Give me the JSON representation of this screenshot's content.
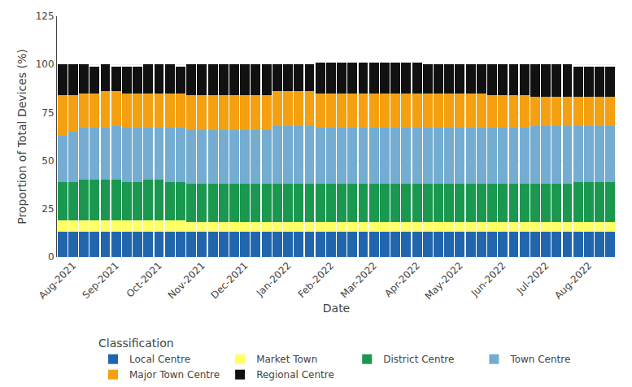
{
  "chart_data": {
    "type": "bar",
    "stacked": true,
    "xlabel": "Date",
    "ylabel": "Proportion of Total Devices (%)",
    "legend_title": "Classification",
    "legend": "bottom",
    "grid": true,
    "categories": [
      null,
      "Aug-2021",
      null,
      null,
      null,
      "Sep-2021",
      null,
      null,
      null,
      "Oct-2021",
      null,
      null,
      null,
      "Nov-2021",
      null,
      null,
      null,
      "Dec-2021",
      null,
      null,
      null,
      "Jan-2022",
      null,
      null,
      null,
      "Feb-2022",
      null,
      null,
      null,
      "Mar-2022",
      null,
      null,
      null,
      "Apr-2022",
      null,
      null,
      null,
      "May-2022",
      null,
      null,
      null,
      "Jun-2022",
      null,
      null,
      null,
      "Jul-2022",
      null,
      null,
      null,
      "Aug-2022",
      null,
      null
    ],
    "ylim": [
      0,
      125
    ],
    "yticks": [
      0,
      25,
      50,
      75,
      100,
      125
    ],
    "series": [
      {
        "name": "Local Centre",
        "color": "#2166ac",
        "values": [
          13,
          13,
          13,
          13,
          13,
          13,
          13,
          13,
          13,
          13,
          13,
          13,
          13,
          13,
          13,
          13,
          13,
          13,
          13,
          13,
          13,
          13,
          13,
          13,
          13,
          13,
          13,
          13,
          13,
          13,
          13,
          13,
          13,
          13,
          13,
          13,
          13,
          13,
          13,
          13,
          13,
          13,
          13,
          13,
          13,
          13,
          13,
          13,
          13,
          13,
          13,
          13
        ]
      },
      {
        "name": "Market Town",
        "color": "#FFFF66",
        "values": [
          6,
          6,
          6,
          6,
          6,
          6,
          6,
          6,
          6,
          6,
          6,
          6,
          5,
          5,
          5,
          5,
          5,
          5,
          5,
          5,
          5,
          5,
          5,
          5,
          5,
          5,
          5,
          5,
          5,
          5,
          5,
          5,
          5,
          5,
          5,
          5,
          5,
          5,
          5,
          5,
          5,
          5,
          5,
          5,
          5,
          5,
          5,
          5,
          5,
          5,
          5,
          5
        ]
      },
      {
        "name": "District Centre",
        "color": "#1a9850",
        "values": [
          20,
          20,
          21,
          21,
          21,
          21,
          20,
          20,
          21,
          21,
          20,
          20,
          20,
          20,
          20,
          20,
          20,
          20,
          20,
          20,
          20,
          20,
          20,
          20,
          20,
          20,
          20,
          20,
          20,
          20,
          20,
          20,
          20,
          20,
          20,
          20,
          20,
          20,
          20,
          20,
          20,
          20,
          20,
          20,
          20,
          20,
          20,
          20,
          21,
          21,
          21,
          21
        ]
      },
      {
        "name": "Town Centre",
        "color": "#74add1",
        "values": [
          24,
          26,
          27,
          27,
          27,
          28,
          28,
          28,
          27,
          27,
          28,
          28,
          28,
          28,
          28,
          28,
          28,
          28,
          28,
          28,
          30,
          30,
          30,
          30,
          29,
          29,
          29,
          29,
          29,
          29,
          29,
          29,
          29,
          29,
          29,
          29,
          29,
          29,
          29,
          29,
          29,
          29,
          29,
          29,
          30,
          30,
          30,
          30,
          29,
          29,
          29,
          29
        ]
      },
      {
        "name": "Major Town Centre",
        "color": "#f4a010",
        "values": [
          21,
          19,
          18,
          18,
          19,
          18,
          18,
          18,
          18,
          18,
          18,
          18,
          18,
          18,
          18,
          18,
          18,
          18,
          18,
          18,
          18,
          18,
          18,
          18,
          18,
          18,
          18,
          18,
          18,
          18,
          18,
          18,
          18,
          18,
          18,
          18,
          18,
          18,
          18,
          18,
          17,
          17,
          17,
          17,
          15,
          15,
          15,
          15,
          15,
          15,
          15,
          15
        ]
      },
      {
        "name": "Regional Centre",
        "color": "#111111",
        "values": [
          16,
          16,
          15,
          14,
          14,
          13,
          14,
          14,
          15,
          15,
          15,
          14,
          16,
          16,
          16,
          16,
          16,
          16,
          16,
          16,
          14,
          14,
          14,
          14,
          16,
          16,
          16,
          16,
          16,
          16,
          16,
          16,
          16,
          16,
          15,
          15,
          15,
          15,
          15,
          15,
          16,
          16,
          16,
          16,
          17,
          17,
          17,
          17,
          16,
          16,
          16,
          16
        ]
      }
    ]
  }
}
